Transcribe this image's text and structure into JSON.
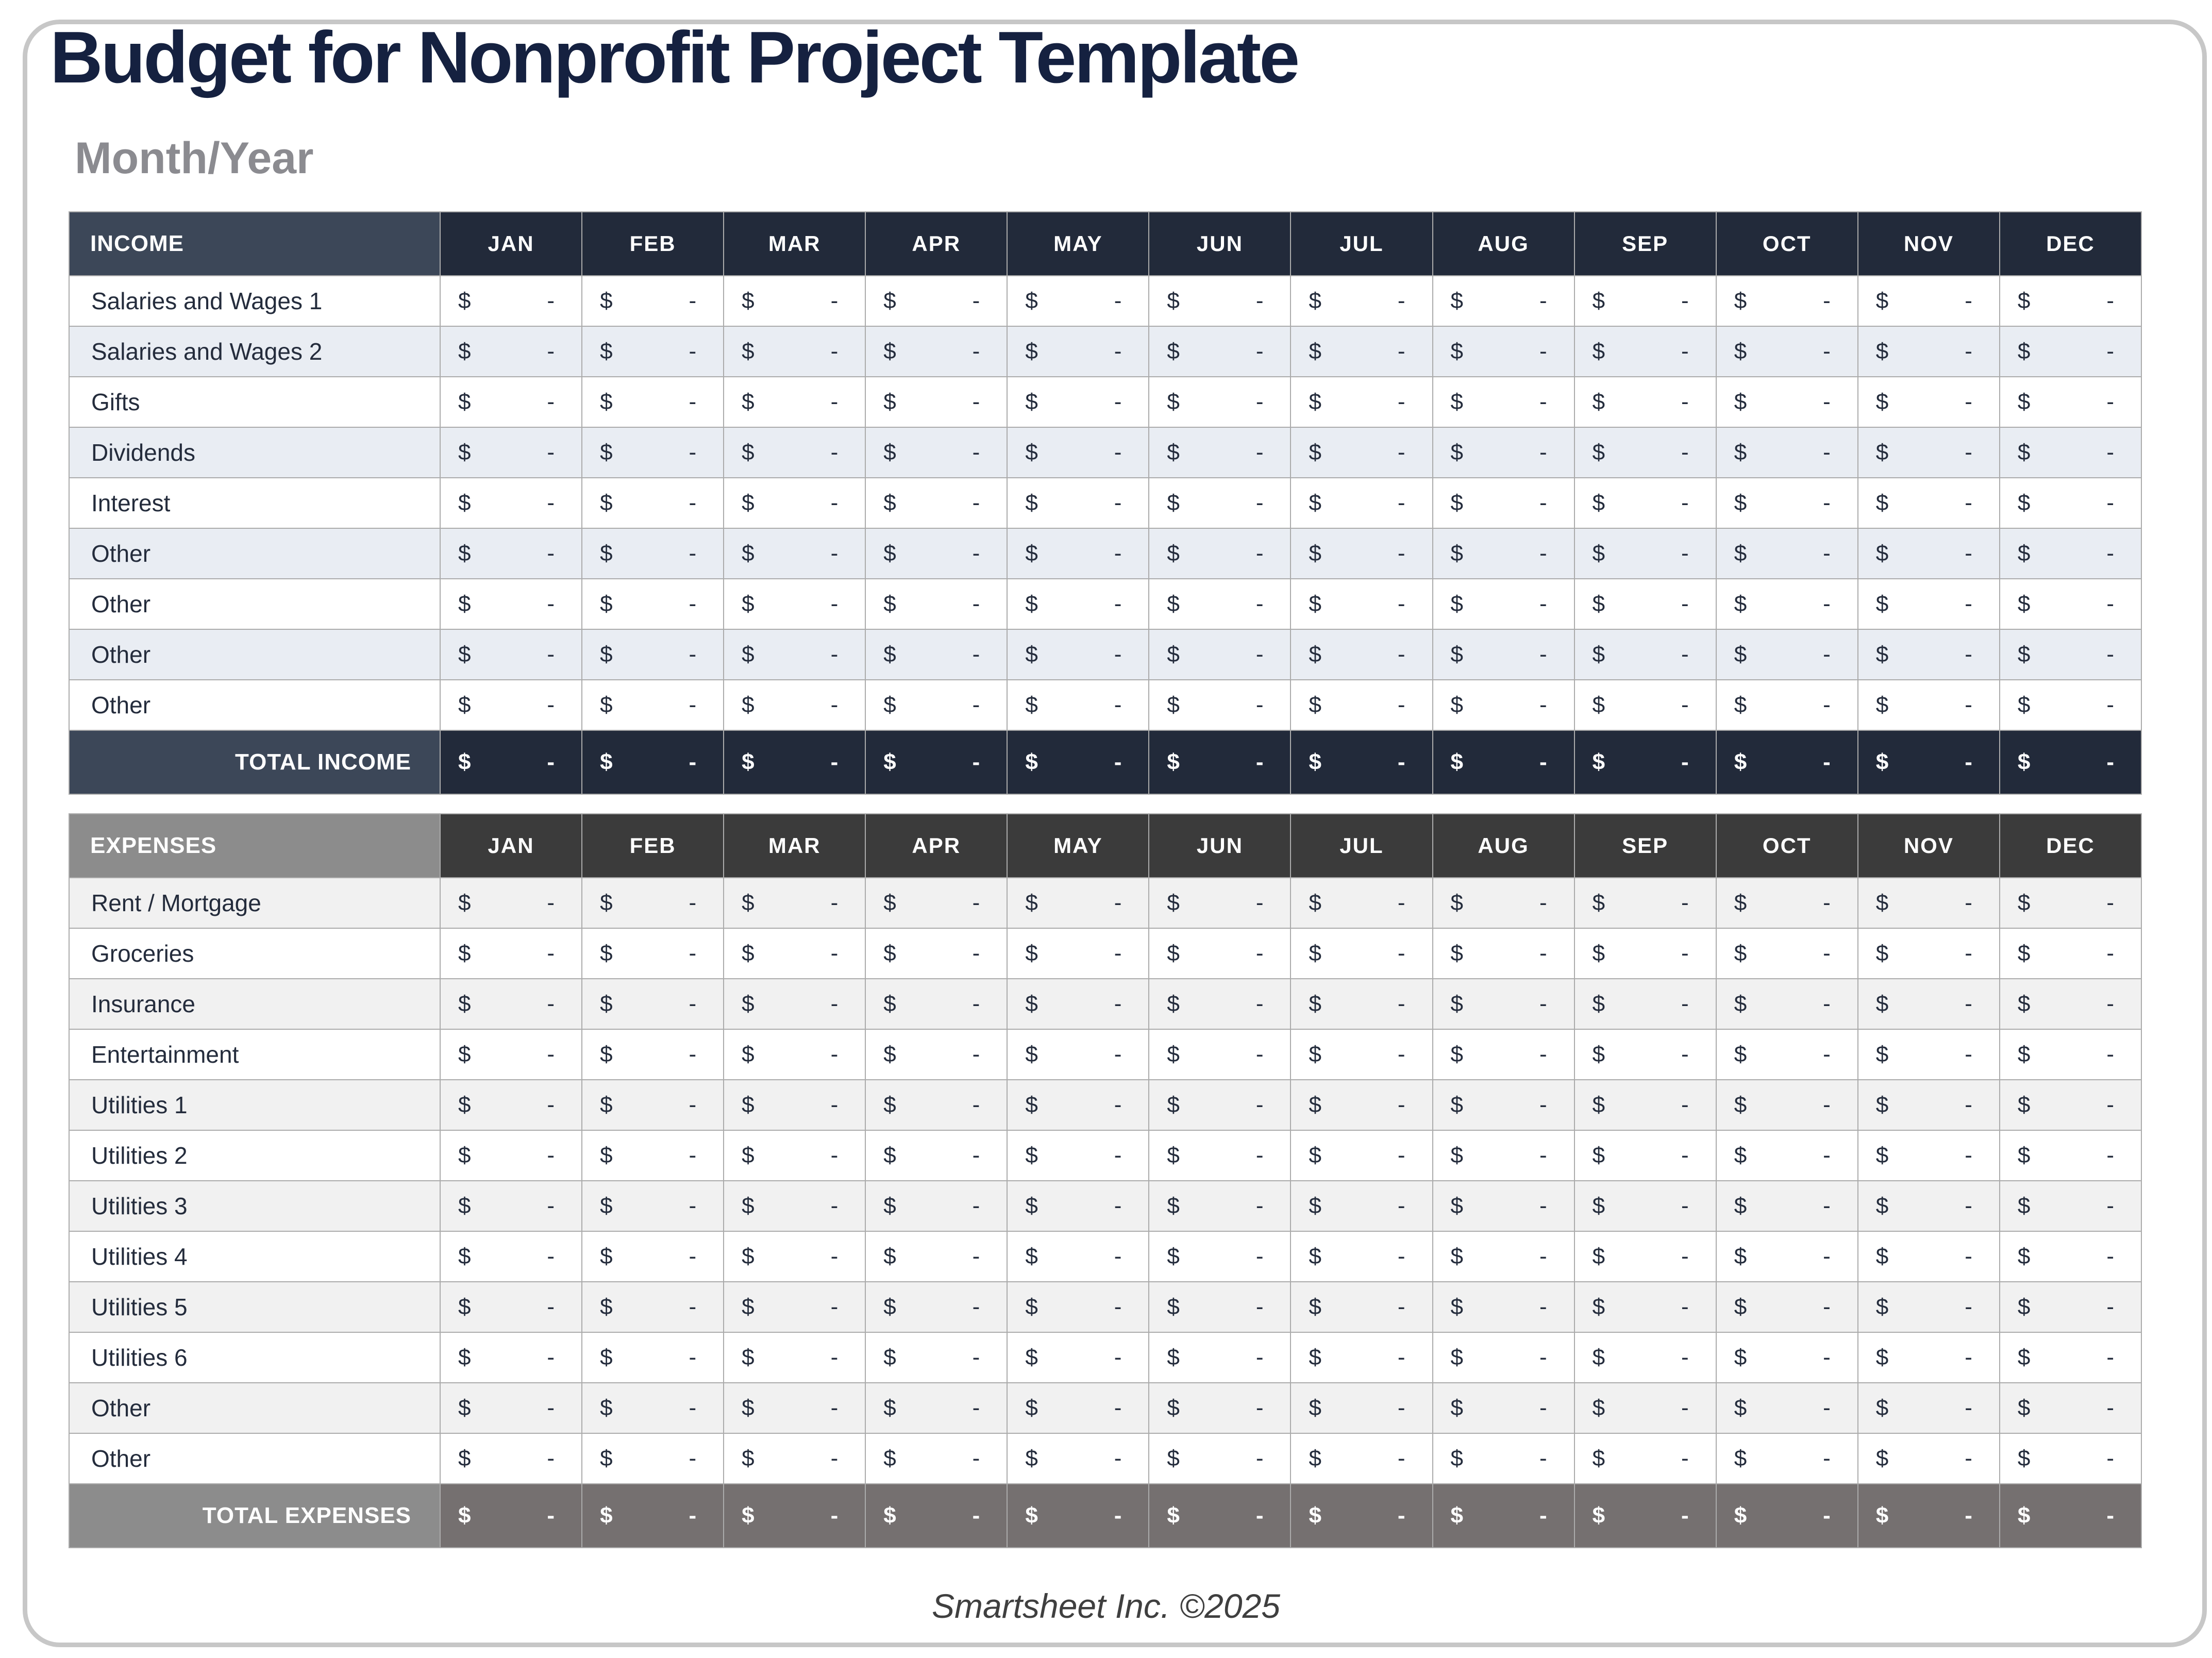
{
  "page": {
    "title": "Budget for Nonprofit Project Template",
    "subtitle": "Month/Year",
    "footer": "Smartsheet Inc. ©2025"
  },
  "months": [
    "JAN",
    "FEB",
    "MAR",
    "APR",
    "MAY",
    "JUN",
    "JUL",
    "AUG",
    "SEP",
    "OCT",
    "NOV",
    "DEC"
  ],
  "cell": {
    "currency": "$",
    "empty": "-"
  },
  "income": {
    "header_label": "INCOME",
    "rows": [
      "Salaries and Wages 1",
      "Salaries and Wages 2",
      "Gifts",
      "Dividends",
      "Interest",
      "Other",
      "Other",
      "Other",
      "Other"
    ],
    "total_label": "TOTAL INCOME"
  },
  "expenses": {
    "header_label": "EXPENSES",
    "rows": [
      "Rent / Mortgage",
      "Groceries",
      "Insurance",
      "Entertainment",
      "Utilities 1",
      "Utilities 2",
      "Utilities 3",
      "Utilities 4",
      "Utilities 5",
      "Utilities 6",
      "Other",
      "Other"
    ],
    "total_label": "TOTAL EXPENSES"
  },
  "colors": {
    "title": "#152140",
    "subtitle": "#8b8b90",
    "frame_border": "#c7c7c7",
    "grid_border": "#ababab",
    "cell_text": "#242c3c",
    "footer_text": "#3f3f3f",
    "income_label_header_bg": "#3c4758",
    "income_month_header_bg": "#222a3a",
    "income_alt_row_bg": "#e9edf3",
    "expenses_label_header_bg": "#8c8c8c",
    "expenses_month_header_bg": "#3b3b3b",
    "expenses_total_month_bg": "#757070",
    "expenses_alt_row_bg": "#f1f1f1"
  }
}
